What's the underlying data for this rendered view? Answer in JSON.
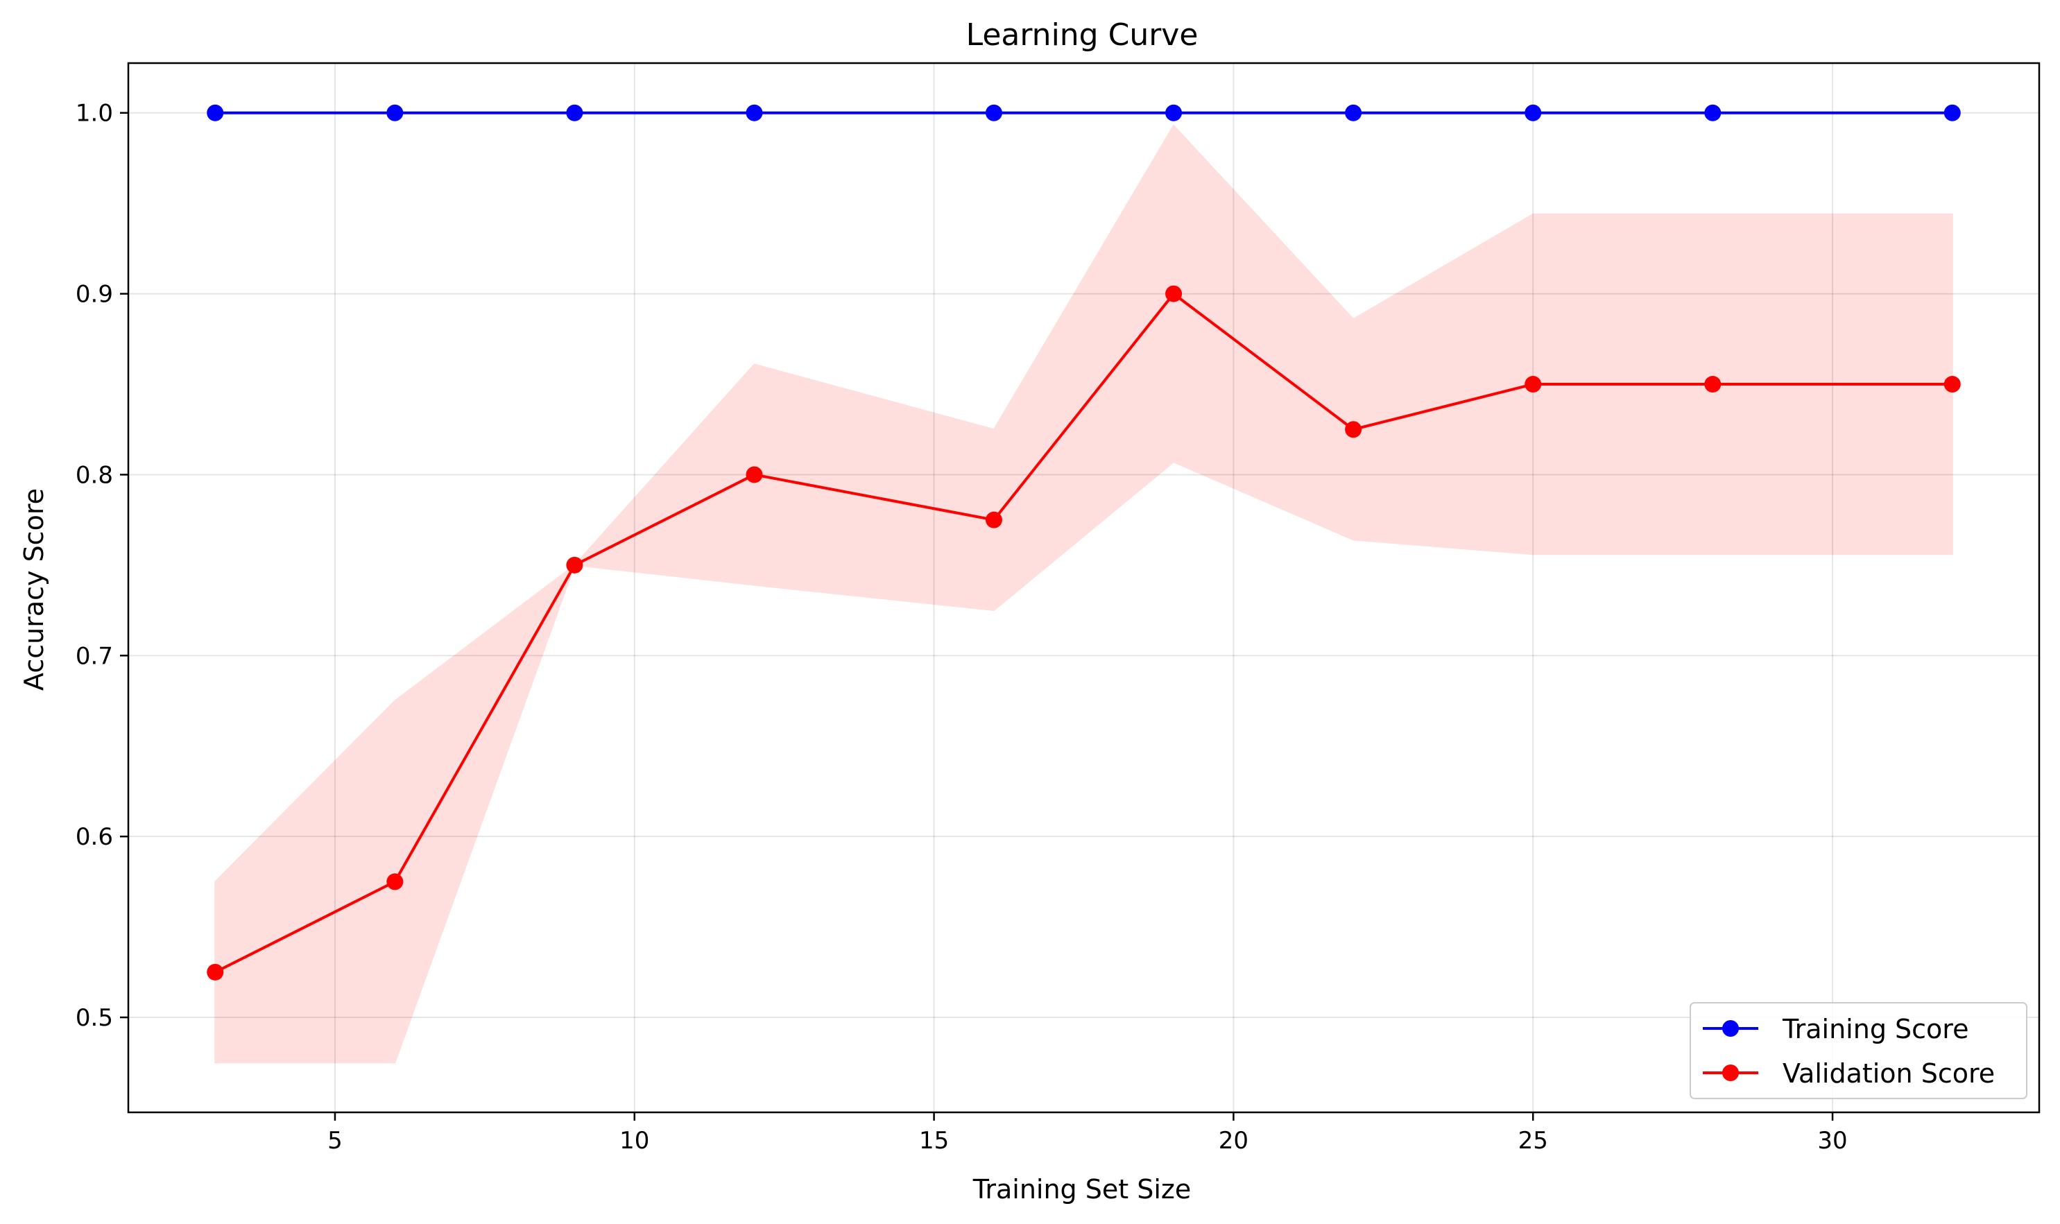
{
  "chart_data": {
    "type": "line",
    "title": "Learning Curve",
    "xlabel": "Training Set Size",
    "ylabel": "Accuracy Score",
    "xlim": [
      1.55,
      33.45
    ],
    "ylim": [
      0.4475,
      1.0275
    ],
    "xticks": [
      5,
      10,
      15,
      20,
      25,
      30
    ],
    "yticks": [
      0.5,
      0.6,
      0.7,
      0.8,
      0.9,
      1.0
    ],
    "xtick_labels": [
      "5",
      "10",
      "15",
      "20",
      "25",
      "30"
    ],
    "ytick_labels": [
      "0.5",
      "0.6",
      "0.7",
      "0.8",
      "0.9",
      "1.0"
    ],
    "grid": true,
    "legend_position": "lower right",
    "x": [
      3,
      6,
      9,
      12,
      16,
      19,
      22,
      25,
      28,
      32
    ],
    "series": [
      {
        "name": "Training Score",
        "color": "#0000ff",
        "marker": "circle",
        "values": [
          1.0,
          1.0,
          1.0,
          1.0,
          1.0,
          1.0,
          1.0,
          1.0,
          1.0,
          1.0
        ]
      },
      {
        "name": "Validation Score",
        "color": "#ff0000",
        "marker": "circle",
        "values": [
          0.525,
          0.575,
          0.75,
          0.8,
          0.775,
          0.9,
          0.825,
          0.85,
          0.85,
          0.85
        ],
        "band_color": "#ffdede",
        "band_lower": [
          0.475,
          0.475,
          0.75,
          0.739,
          0.725,
          0.807,
          0.764,
          0.756,
          0.756,
          0.756
        ],
        "band_upper": [
          0.575,
          0.675,
          0.75,
          0.861,
          0.825,
          0.993,
          0.886,
          0.944,
          0.944,
          0.944
        ]
      }
    ]
  }
}
